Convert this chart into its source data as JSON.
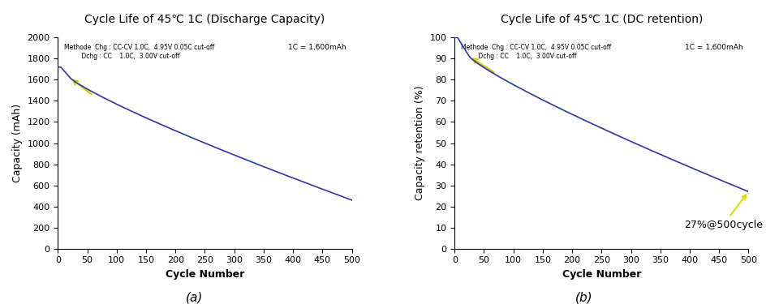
{
  "title_a": "Cycle Life of 45℃ 1C (Discharge Capacity)",
  "title_b": "Cycle Life of 45℃ 1C (DC retention)",
  "title_a_bold_part": "Discharge Capacity",
  "title_b_bold_part": "DC retention",
  "xlabel": "Cycle Number",
  "ylabel_a": "Capacity (mAh)",
  "ylabel_b": "Capacity retention (%)",
  "method_text": "Methode  Chg : CC-CV 1.0C,  4.95V 0.05C cut-off\n       Dchg : CC    1.0C,  3.00V cut-off",
  "legend_text": "1C = 1,600mAh",
  "annotation_b": "27%@500cycle",
  "xlim": [
    0,
    500
  ],
  "ylim_a": [
    0,
    2000
  ],
  "ylim_b": [
    0,
    100
  ],
  "yticks_a": [
    0,
    200,
    400,
    600,
    800,
    1000,
    1200,
    1400,
    1600,
    1800,
    2000
  ],
  "yticks_b": [
    0,
    10,
    20,
    30,
    40,
    50,
    60,
    70,
    80,
    90,
    100
  ],
  "xticks": [
    0,
    50,
    100,
    150,
    200,
    250,
    300,
    350,
    400,
    450,
    500
  ],
  "line_color": "#3333aa",
  "bg_color": "#ffffff",
  "label_a": "(a)",
  "label_b": "(b)"
}
